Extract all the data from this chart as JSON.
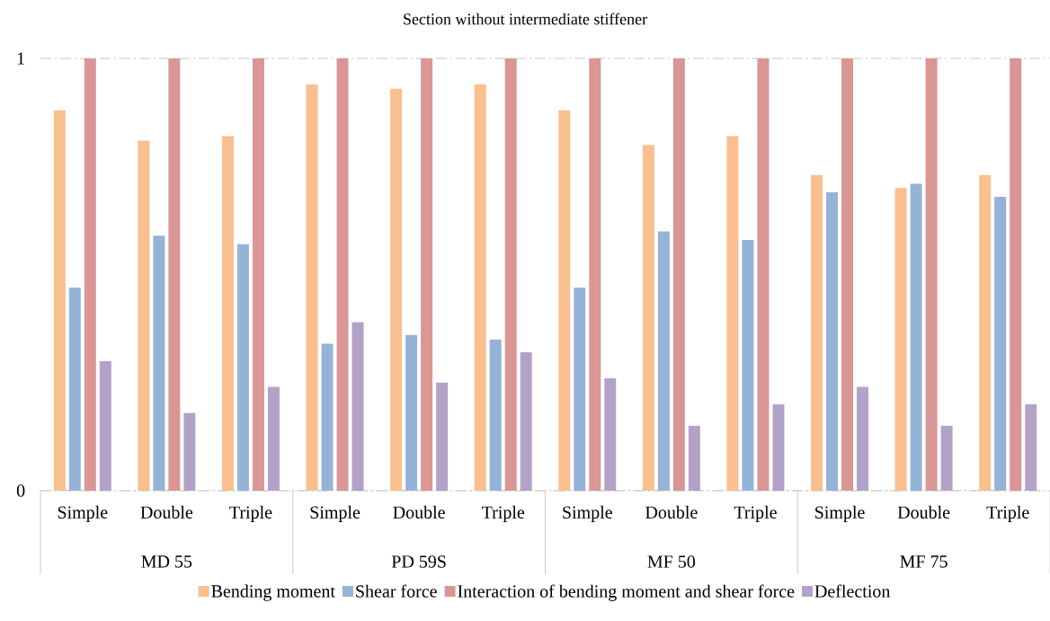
{
  "chart_data": {
    "type": "bar",
    "title": "Section without intermediate stiffener",
    "categories": [
      "Simple",
      "Double",
      "Triple",
      "Simple",
      "Double",
      "Triple",
      "Simple",
      "Double",
      "Triple",
      "Simple",
      "Double",
      "Triple"
    ],
    "annotations": [
      "MD 55",
      "PD 59S",
      "MF 50",
      "MF 75"
    ],
    "series": [
      {
        "name": "Bending moment",
        "color": "#f9bf8f",
        "values": [
          0.88,
          0.81,
          0.82,
          0.94,
          0.93,
          0.94,
          0.88,
          0.8,
          0.82,
          0.73,
          0.7,
          0.73
        ]
      },
      {
        "name": "Shear force",
        "color": "#95b3d7",
        "values": [
          0.47,
          0.59,
          0.57,
          0.34,
          0.36,
          0.35,
          0.47,
          0.6,
          0.58,
          0.69,
          0.71,
          0.68
        ]
      },
      {
        "name": "Interaction of bending moment and shear force",
        "color": "#d99694",
        "values": [
          1,
          1,
          1,
          1,
          1,
          1,
          1,
          1,
          1,
          1,
          1,
          1
        ]
      },
      {
        "name": "Deflection",
        "color": "#b3a2c7",
        "values": [
          0.3,
          0.18,
          0.24,
          0.39,
          0.25,
          0.32,
          0.26,
          0.15,
          0.2,
          0.24,
          0.15,
          0.2
        ]
      }
    ],
    "ylim": [
      0,
      1
    ],
    "yticks": [
      0,
      1
    ],
    "grid": "y",
    "legend": "bottom"
  }
}
